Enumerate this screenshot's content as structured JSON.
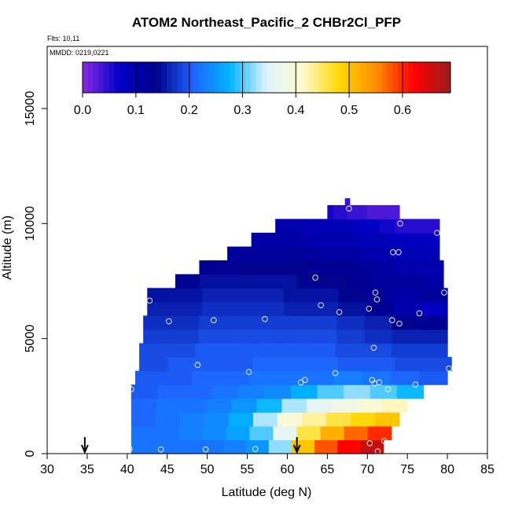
{
  "chart_data": {
    "type": "heatmap",
    "title": "ATOM2 Northeast_Pacific_2 CHBr2Cl_PFP",
    "flights_label": "Flts: 10,11",
    "dates_label": "MMDD: 0219,0221",
    "xlabel": "Latitude (deg N)",
    "ylabel": "Altitude (m)",
    "xlim": [
      30,
      85
    ],
    "ylim": [
      0,
      17700
    ],
    "x_ticks": [
      "30",
      "35",
      "40",
      "45",
      "50",
      "55",
      "60",
      "65",
      "70",
      "75",
      "80",
      "85"
    ],
    "y_ticks": [
      "0",
      "5000",
      "10000",
      "15000"
    ],
    "colorbar": {
      "range": [
        0,
        0.69
      ],
      "ticks": [
        "0.0",
        "0.1",
        "0.2",
        "0.3",
        "0.4",
        "0.5",
        "0.6"
      ],
      "colors": [
        "#8a2be2",
        "#0000c8",
        "#00008b",
        "#1e64ff",
        "#00b4ff",
        "#e0f4ff",
        "#fffacd",
        "#ffd700",
        "#ff8c00",
        "#ff0000",
        "#9b1c1c"
      ]
    },
    "field_rows": [
      {
        "alt": [
          0,
          600
        ],
        "lat": [
          40.5,
          72
        ],
        "values": [
          0.22,
          0.22,
          0.22,
          0.22,
          0.23,
          0.25,
          0.32,
          0.5,
          0.58,
          0.62,
          0.66
        ]
      },
      {
        "alt": [
          600,
          1200
        ],
        "lat": [
          40.5,
          73
        ],
        "values": [
          0.22,
          0.22,
          0.23,
          0.24,
          0.26,
          0.3,
          0.36,
          0.46,
          0.52,
          0.57,
          0.6
        ]
      },
      {
        "alt": [
          1200,
          1800
        ],
        "lat": [
          40.5,
          74
        ],
        "values": [
          0.21,
          0.22,
          0.23,
          0.24,
          0.27,
          0.33,
          0.4,
          0.43,
          0.46,
          0.48,
          0.5
        ]
      },
      {
        "alt": [
          1800,
          2400
        ],
        "lat": [
          40.5,
          75
        ],
        "values": [
          0.21,
          0.22,
          0.22,
          0.23,
          0.25,
          0.28,
          0.33,
          0.36,
          0.38,
          0.4,
          0.42
        ]
      },
      {
        "alt": [
          2400,
          3000
        ],
        "lat": [
          40.5,
          77
        ],
        "values": [
          0.2,
          0.21,
          0.21,
          0.22,
          0.23,
          0.24,
          0.27,
          0.3,
          0.32,
          0.3,
          0.28
        ]
      },
      {
        "alt": [
          3000,
          3600
        ],
        "lat": [
          41,
          80
        ],
        "values": [
          0.2,
          0.2,
          0.21,
          0.21,
          0.22,
          0.22,
          0.22,
          0.23,
          0.22,
          0.21,
          0.2
        ]
      },
      {
        "alt": [
          3600,
          4200
        ],
        "lat": [
          41.5,
          80.5
        ],
        "values": [
          0.19,
          0.2,
          0.2,
          0.2,
          0.21,
          0.21,
          0.21,
          0.2,
          0.2,
          0.19,
          0.19
        ]
      },
      {
        "alt": [
          4200,
          4800
        ],
        "lat": [
          41.5,
          80
        ],
        "values": [
          0.19,
          0.19,
          0.2,
          0.2,
          0.2,
          0.2,
          0.2,
          0.19,
          0.19,
          0.18,
          0.18
        ]
      },
      {
        "alt": [
          4800,
          5400
        ],
        "lat": [
          42,
          80
        ],
        "values": [
          0.18,
          0.18,
          0.19,
          0.19,
          0.19,
          0.19,
          0.19,
          0.18,
          0.17,
          0.16,
          0.16
        ]
      },
      {
        "alt": [
          5400,
          6000
        ],
        "lat": [
          42,
          80
        ],
        "values": [
          0.17,
          0.17,
          0.18,
          0.18,
          0.18,
          0.18,
          0.18,
          0.17,
          0.16,
          0.14,
          0.13
        ]
      },
      {
        "alt": [
          6000,
          6600
        ],
        "lat": [
          42.5,
          80
        ],
        "values": [
          0.16,
          0.16,
          0.17,
          0.17,
          0.17,
          0.16,
          0.16,
          0.15,
          0.13,
          0.1,
          0.08
        ]
      },
      {
        "alt": [
          6600,
          7200
        ],
        "lat": [
          42.5,
          80
        ],
        "values": [
          0.15,
          0.15,
          0.16,
          0.16,
          0.16,
          0.15,
          0.15,
          0.14,
          0.12,
          0.11,
          0.12
        ]
      },
      {
        "alt": [
          7200,
          7800
        ],
        "lat": [
          46,
          79.5
        ],
        "values": [
          0.14,
          0.15,
          0.15,
          0.15,
          0.15,
          0.14,
          0.14,
          0.13,
          0.12,
          0.12,
          0.11
        ]
      },
      {
        "alt": [
          7800,
          8400
        ],
        "lat": [
          49,
          79.5
        ],
        "values": [
          0.13,
          0.13,
          0.14,
          0.14,
          0.14,
          0.13,
          0.13,
          0.12,
          0.11,
          0.1,
          0.1
        ]
      },
      {
        "alt": [
          8400,
          9000
        ],
        "lat": [
          52.5,
          79
        ],
        "values": [
          0.12,
          0.12,
          0.12,
          0.12,
          0.12,
          0.11,
          0.11,
          0.1,
          0.1,
          0.09,
          0.09
        ]
      },
      {
        "alt": [
          9000,
          9600
        ],
        "lat": [
          55.5,
          79
        ],
        "values": [
          0.11,
          0.11,
          0.11,
          0.1,
          0.1,
          0.1,
          0.09,
          0.09,
          0.08,
          0.08,
          0.08
        ]
      },
      {
        "alt": [
          9600,
          10200
        ],
        "lat": [
          58.5,
          79
        ],
        "values": [
          0.1,
          0.1,
          0.09,
          0.09,
          0.09,
          0.08,
          0.07,
          0.06,
          0.05,
          0.05,
          0.05
        ]
      },
      {
        "alt": [
          10200,
          10800
        ],
        "lat": [
          65,
          74
        ],
        "values": [
          0.06,
          0.05,
          0.05,
          0.04,
          0.04,
          0.04,
          0.03,
          0.03,
          0.03,
          0.03,
          0.03
        ]
      },
      {
        "alt": [
          10800,
          11100
        ],
        "lat": [
          67.2,
          67.8
        ],
        "values": [
          0.04,
          0.04
        ]
      }
    ],
    "samples": [
      {
        "lat": 40.5,
        "alt": 2800
      },
      {
        "lat": 40.3,
        "alt": 200
      },
      {
        "lat": 44.2,
        "alt": 180
      },
      {
        "lat": 49.8,
        "alt": 180
      },
      {
        "lat": 56,
        "alt": 200
      },
      {
        "lat": 42.8,
        "alt": 6650
      },
      {
        "lat": 45.2,
        "alt": 5750
      },
      {
        "lat": 50.8,
        "alt": 5800
      },
      {
        "lat": 57.2,
        "alt": 5850
      },
      {
        "lat": 48.8,
        "alt": 3850
      },
      {
        "lat": 55.2,
        "alt": 3550
      },
      {
        "lat": 61.7,
        "alt": 3100
      },
      {
        "lat": 62.2,
        "alt": 3200
      },
      {
        "lat": 63.5,
        "alt": 7650
      },
      {
        "lat": 64.2,
        "alt": 6450
      },
      {
        "lat": 66.5,
        "alt": 6150
      },
      {
        "lat": 66,
        "alt": 3500
      },
      {
        "lat": 67.7,
        "alt": 10650
      },
      {
        "lat": 70.2,
        "alt": 6300
      },
      {
        "lat": 71,
        "alt": 7000
      },
      {
        "lat": 71.2,
        "alt": 6700
      },
      {
        "lat": 70.8,
        "alt": 4600
      },
      {
        "lat": 70.6,
        "alt": 3200
      },
      {
        "lat": 70.9,
        "alt": 3050
      },
      {
        "lat": 71.5,
        "alt": 3100
      },
      {
        "lat": 72.6,
        "alt": 2800
      },
      {
        "lat": 73.1,
        "alt": 5800
      },
      {
        "lat": 73.2,
        "alt": 8750
      },
      {
        "lat": 73.9,
        "alt": 8750
      },
      {
        "lat": 74,
        "alt": 5650
      },
      {
        "lat": 74.1,
        "alt": 10000
      },
      {
        "lat": 76,
        "alt": 3000
      },
      {
        "lat": 76.5,
        "alt": 6100
      },
      {
        "lat": 78.7,
        "alt": 9600
      },
      {
        "lat": 79.6,
        "alt": 7000
      },
      {
        "lat": 80.2,
        "alt": 3700
      },
      {
        "lat": 70.3,
        "alt": 450
      },
      {
        "lat": 71.3,
        "alt": 100
      },
      {
        "lat": 72.1,
        "alt": 550
      }
    ],
    "flight_markers": [
      34.7,
      61.2
    ]
  }
}
